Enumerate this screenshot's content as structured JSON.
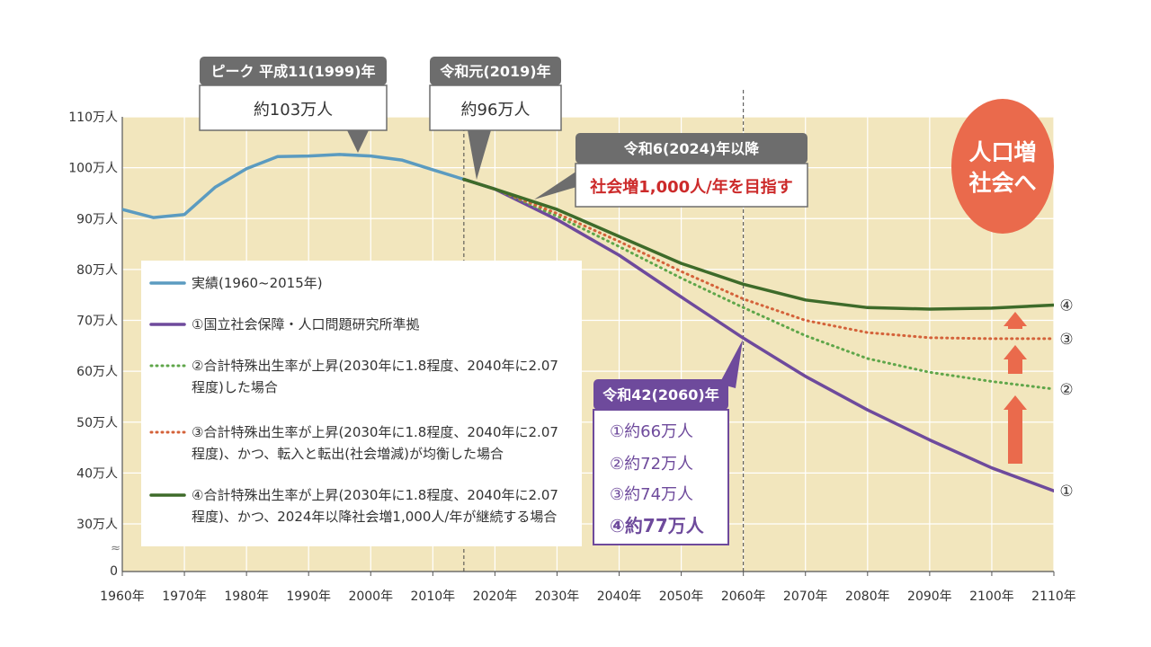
{
  "chart_data": {
    "type": "line",
    "xlim": [
      1960,
      2110
    ],
    "ylim": [
      30,
      110
    ],
    "y_axis_break_label": "0",
    "y_ticks": [
      {
        "value": 30,
        "label": "30万人"
      },
      {
        "value": 40,
        "label": "40万人"
      },
      {
        "value": 50,
        "label": "50万人"
      },
      {
        "value": 60,
        "label": "60万人"
      },
      {
        "value": 70,
        "label": "70万人"
      },
      {
        "value": 80,
        "label": "80万人"
      },
      {
        "value": 90,
        "label": "90万人"
      },
      {
        "value": 100,
        "label": "100万人"
      },
      {
        "value": 110,
        "label": "110万人"
      }
    ],
    "x_ticks": [
      {
        "value": 1960,
        "label": "1960年"
      },
      {
        "value": 1970,
        "label": "1970年"
      },
      {
        "value": 1980,
        "label": "1980年"
      },
      {
        "value": 1990,
        "label": "1990年"
      },
      {
        "value": 2000,
        "label": "2000年"
      },
      {
        "value": 2010,
        "label": "2010年"
      },
      {
        "value": 2020,
        "label": "2020年"
      },
      {
        "value": 2030,
        "label": "2030年"
      },
      {
        "value": 2040,
        "label": "2040年"
      },
      {
        "value": 2050,
        "label": "2050年"
      },
      {
        "value": 2060,
        "label": "2060年"
      },
      {
        "value": 2070,
        "label": "2070年"
      },
      {
        "value": 2080,
        "label": "2080年"
      },
      {
        "value": 2090,
        "label": "2090年"
      },
      {
        "value": 2100,
        "label": "2100年"
      },
      {
        "value": 2110,
        "label": "2110年"
      }
    ],
    "reference_lines": [
      2015,
      2060
    ],
    "series": [
      {
        "key": "actual",
        "name": "実績(1960~2015年)",
        "color": "#5b9bc0",
        "style": "solid",
        "x": [
          1960,
          1965,
          1970,
          1975,
          1980,
          1985,
          1990,
          1995,
          2000,
          2005,
          2010,
          2015
        ],
        "y": [
          91.8,
          90.2,
          90.8,
          96.2,
          99.8,
          102.2,
          102.3,
          102.6,
          102.3,
          101.5,
          99.6,
          97.7
        ]
      },
      {
        "key": "s1",
        "marker": "①",
        "name": "①国立社会保障・人口問題研究所準拠",
        "color": "#6e4a9c",
        "style": "solid",
        "x": [
          2015,
          2020,
          2030,
          2040,
          2050,
          2060,
          2070,
          2080,
          2090,
          2100,
          2110
        ],
        "y": [
          97.7,
          95.8,
          89.8,
          82.8,
          74.6,
          66.5,
          59.0,
          52.4,
          46.5,
          41.0,
          36.5
        ]
      },
      {
        "key": "s2",
        "marker": "②",
        "name": "②合計特殊出生率が上昇(2030年に1.8程度、2040年に2.07程度)した場合",
        "color": "#5fa64a",
        "style": "dotted",
        "x": [
          2015,
          2020,
          2030,
          2040,
          2050,
          2060,
          2070,
          2080,
          2090,
          2100,
          2110
        ],
        "y": [
          97.7,
          95.8,
          90.5,
          84.5,
          78.3,
          72.5,
          67.0,
          62.5,
          59.8,
          58.0,
          56.5
        ]
      },
      {
        "key": "s3",
        "marker": "③",
        "name": "③合計特殊出生率が上昇(2030年に1.8程度、2040年に2.07程度)、かつ、転入と転出(社会増減)が均衡した場合",
        "color": "#d4623a",
        "style": "dotted",
        "x": [
          2015,
          2020,
          2030,
          2040,
          2050,
          2060,
          2070,
          2080,
          2090,
          2100,
          2110
        ],
        "y": [
          97.7,
          95.8,
          91.0,
          85.5,
          79.6,
          74.2,
          70.0,
          67.6,
          66.6,
          66.4,
          66.4
        ]
      },
      {
        "key": "s4",
        "marker": "④",
        "name": "④合計特殊出生率が上昇(2030年に1.8程度、2040年に2.07程度)、かつ、2024年以降社会増1,000人/年が継続する場合",
        "color": "#3e6b2a",
        "style": "solid",
        "x": [
          2015,
          2020,
          2030,
          2040,
          2050,
          2060,
          2070,
          2080,
          2090,
          2100,
          2110
        ],
        "y": [
          97.7,
          95.8,
          91.8,
          86.5,
          81.2,
          77.1,
          74.0,
          72.5,
          72.2,
          72.4,
          73.0
        ]
      }
    ],
    "legend": [
      {
        "key": "actual",
        "lines": [
          "実績(1960~2015年)"
        ]
      },
      {
        "key": "s1",
        "lines": [
          "①国立社会保障・人口問題研究所準拠"
        ]
      },
      {
        "key": "s2",
        "lines": [
          "②合計特殊出生率が上昇(2030年に1.8程度、2040年に2.07",
          "程度)した場合"
        ]
      },
      {
        "key": "s3",
        "lines": [
          "③合計特殊出生率が上昇(2030年に1.8程度、2040年に2.07",
          "程度)、かつ、転入と転出(社会増減)が均衡した場合"
        ]
      },
      {
        "key": "s4",
        "lines": [
          "④合計特殊出生率が上昇(2030年に1.8程度、2040年に2.07",
          "程度)、かつ、2024年以降社会増1,000人/年が継続する場合"
        ]
      }
    ],
    "annotations": {
      "peak": {
        "title": "ピーク 平成11(1999)年",
        "value": "約103万人"
      },
      "reiwa1": {
        "title": "令和元(2019)年",
        "value": "約96万人"
      },
      "reiwa6": {
        "title": "令和6(2024)年以降",
        "value": "社会増1,000人/年を目指す"
      },
      "reiwa42": {
        "title": "令和42(2060)年",
        "items": [
          "①約66万人",
          "②約72万人",
          "③約74万人",
          "④約77万人"
        ]
      },
      "goal": {
        "lines": [
          "人口増",
          "社会へ"
        ]
      }
    }
  },
  "colors": {
    "plot_background": "#f2e6bd",
    "callout_header": "#6d6d6d",
    "goal_circle": "#ea6a4c",
    "arrow": "#ea6a4c",
    "highlight_text": "#cc2a2a",
    "reiwa42_border": "#6e4a9c"
  }
}
